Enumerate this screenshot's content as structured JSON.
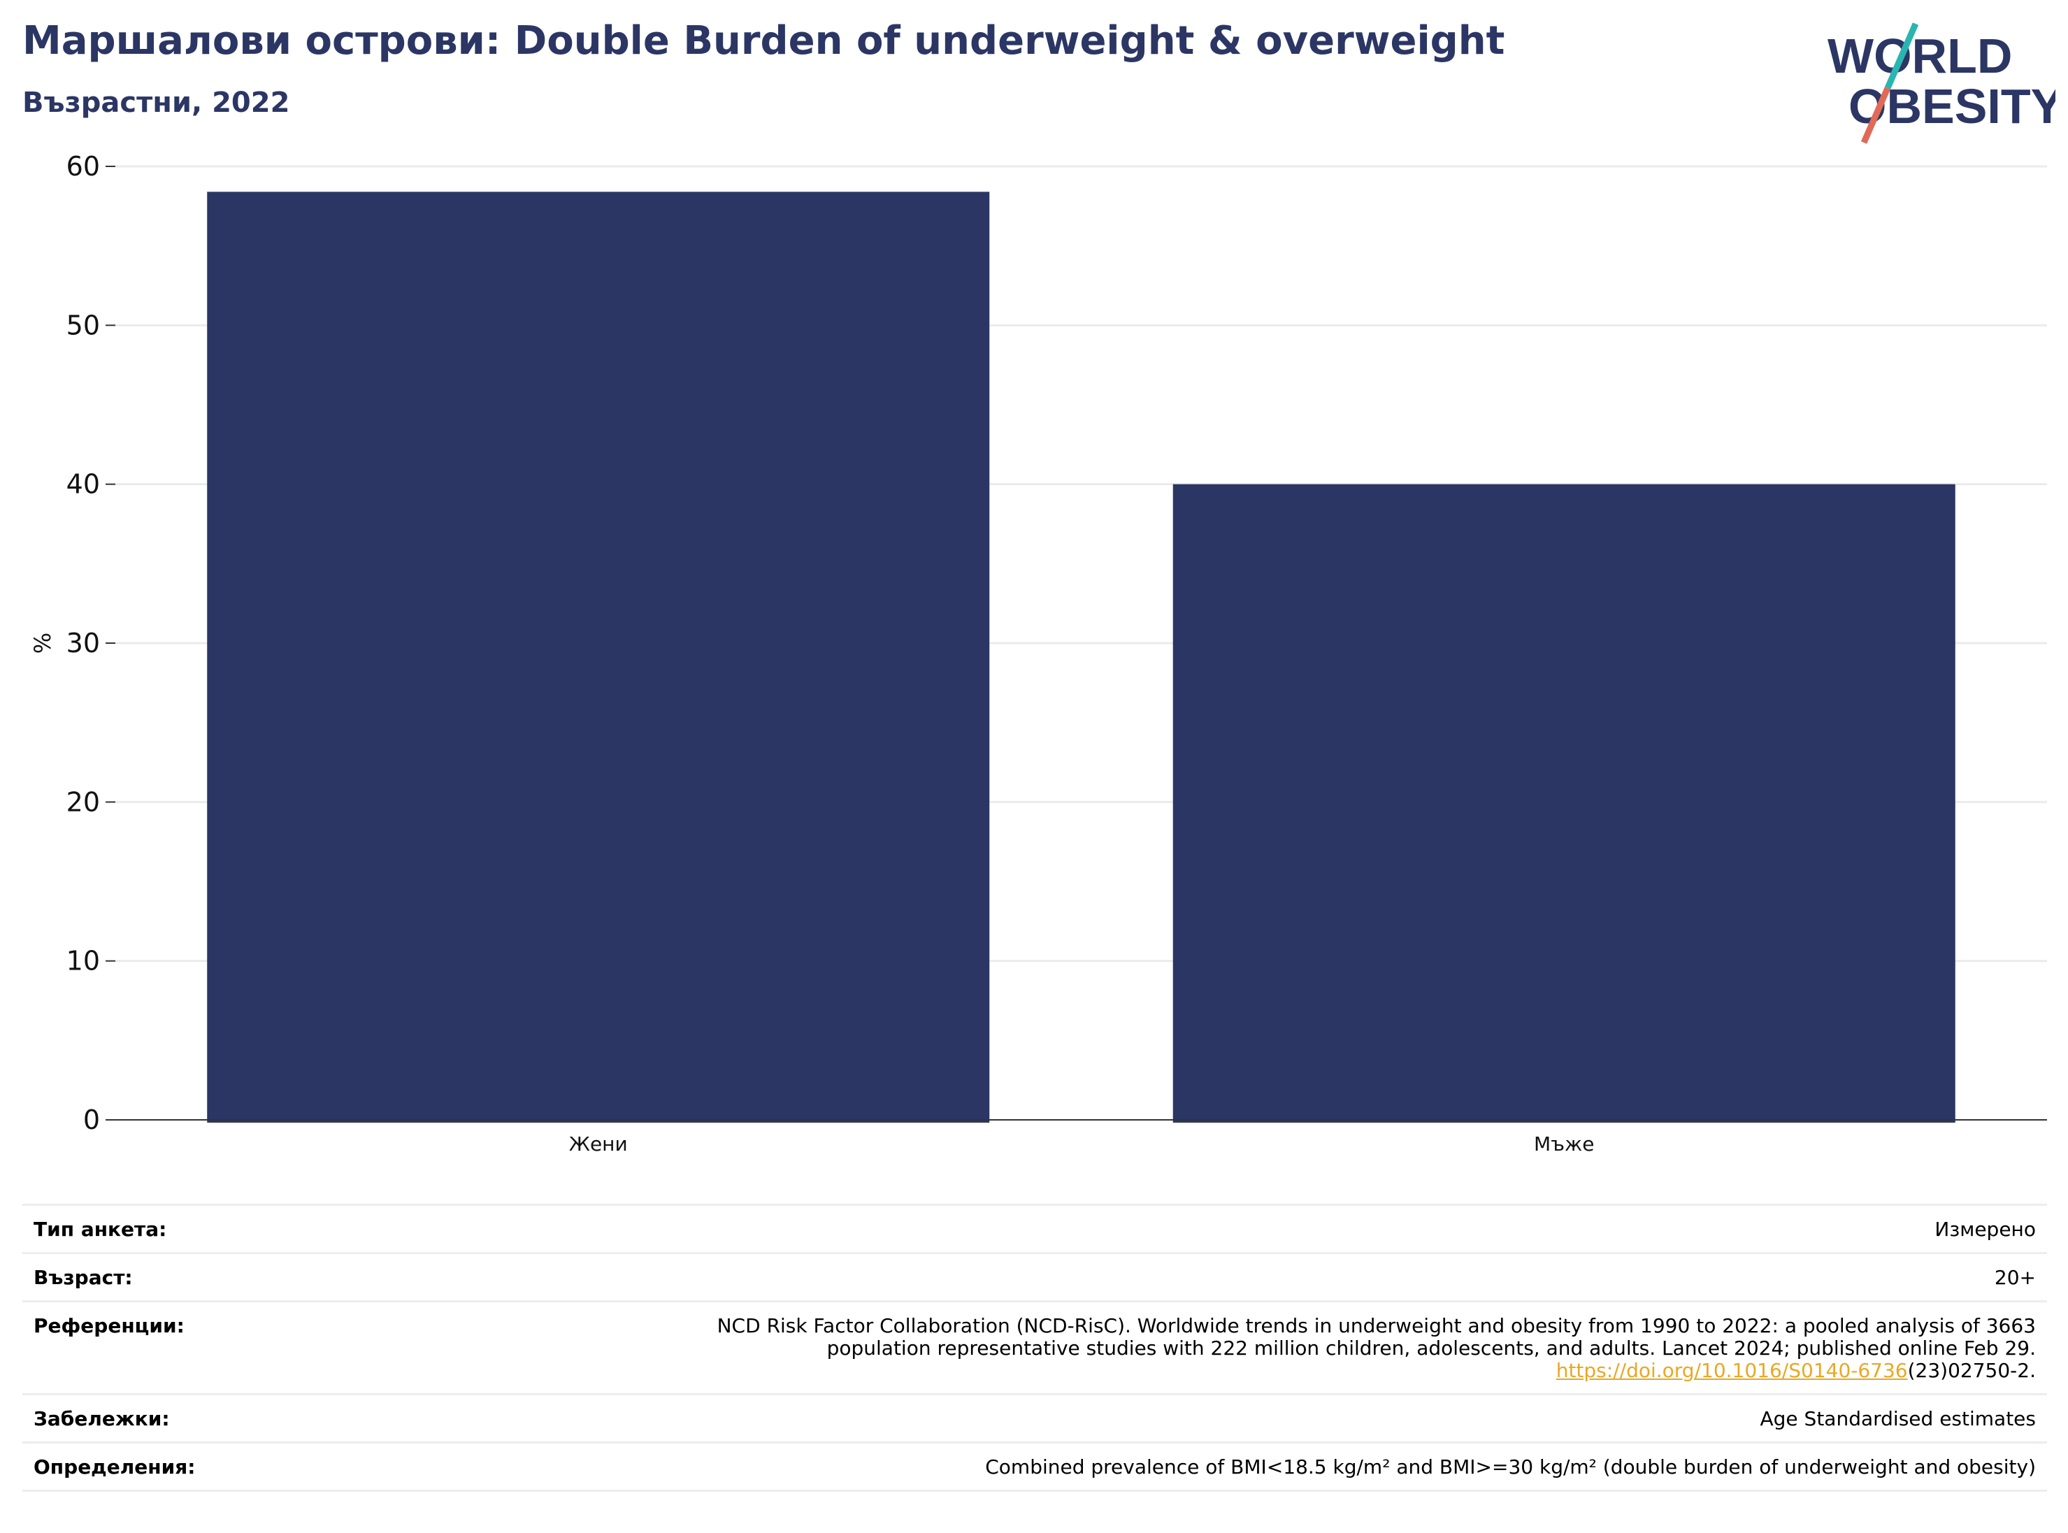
{
  "header": {
    "title": "Маршалови острови: Double Burden of underweight & overweight",
    "subtitle": "Възрастни, 2022"
  },
  "logo": {
    "line1": "WORLD",
    "line2": "OBESITY"
  },
  "colors": {
    "bar": "#2b3664",
    "title": "#2b3664",
    "logo_teal": "#2bb5b0",
    "logo_red": "#e06a57",
    "link": "#e9a825"
  },
  "chart_data": {
    "type": "bar",
    "categories": [
      "Жени",
      "Мъже"
    ],
    "values": [
      58.4,
      40.0
    ],
    "ylabel": "%",
    "xlabel": "",
    "ylim": [
      0,
      60
    ],
    "yticks": [
      0,
      10,
      20,
      30,
      40,
      50,
      60
    ],
    "grid": true
  },
  "meta": {
    "survey_label": "Тип анкета:",
    "survey_value": "Измерено",
    "age_label": "Възраст:",
    "age_value": "20+",
    "references_label": "Референции:",
    "references_line1": "NCD Risk Factor Collaboration (NCD-RisC). Worldwide trends in underweight and obesity from 1990 to 2022: a pooled analysis of 3663",
    "references_line2": "population representative studies with 222 million children, adolescents, and adults. Lancet 2024; published online Feb 29.",
    "references_link": "https://doi.org/10.1016/S0140-6736",
    "references_tail": "(23)02750-2.",
    "notes_label": "Забележки:",
    "notes_value": "Age Standardised estimates",
    "definitions_label": "Определения:",
    "definitions_value": "Combined prevalence of BMI<18.5 kg/m² and BMI>=30 kg/m² (double burden of underweight and obesity)"
  }
}
